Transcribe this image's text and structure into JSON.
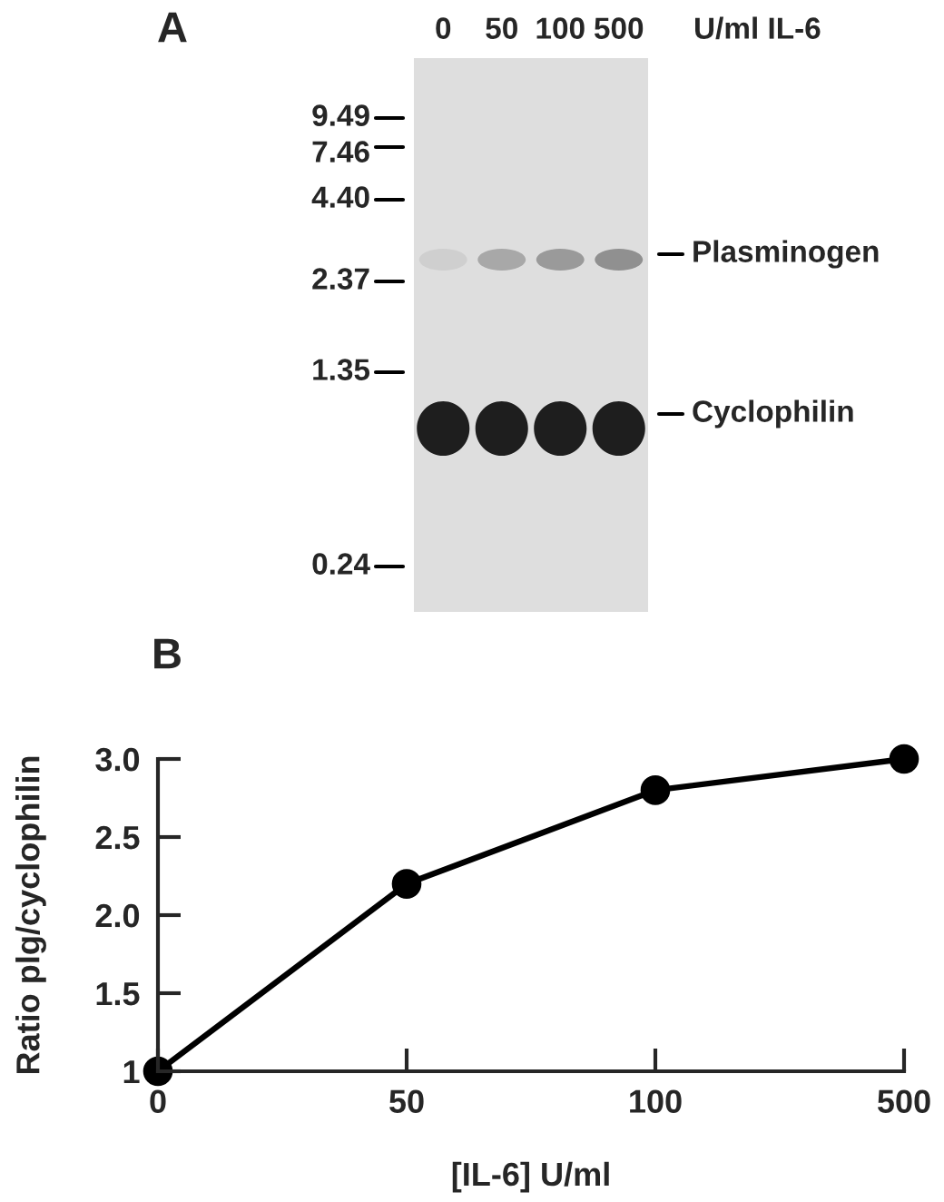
{
  "chart_data": [
    {
      "type": "other",
      "title": "A",
      "categories": [
        "0",
        "50",
        "100",
        "500"
      ],
      "xlabel": "U/ml IL-6",
      "annotations": [
        "9.49",
        "7.46",
        "4.40",
        "2.37",
        "1.35",
        "0.24",
        "Plasminogen",
        "Cyclophilin"
      ]
    },
    {
      "type": "line",
      "title": "B",
      "categories": [
        "0",
        "50",
        "100",
        "500"
      ],
      "values": [
        1,
        2.2,
        2.8,
        3.0
      ],
      "color": "#000000",
      "marker": "circle",
      "line_style": "solid",
      "ylim": [
        1,
        3
      ],
      "yticks": [
        1,
        1.5,
        {
          "value": 2,
          "label": "2.0"
        },
        2.5,
        {
          "value": 3,
          "label": "3.0"
        }
      ],
      "xlabel": "[IL-6] U/ml",
      "ylabel": "Ratio plg/cyclophilin"
    }
  ]
}
